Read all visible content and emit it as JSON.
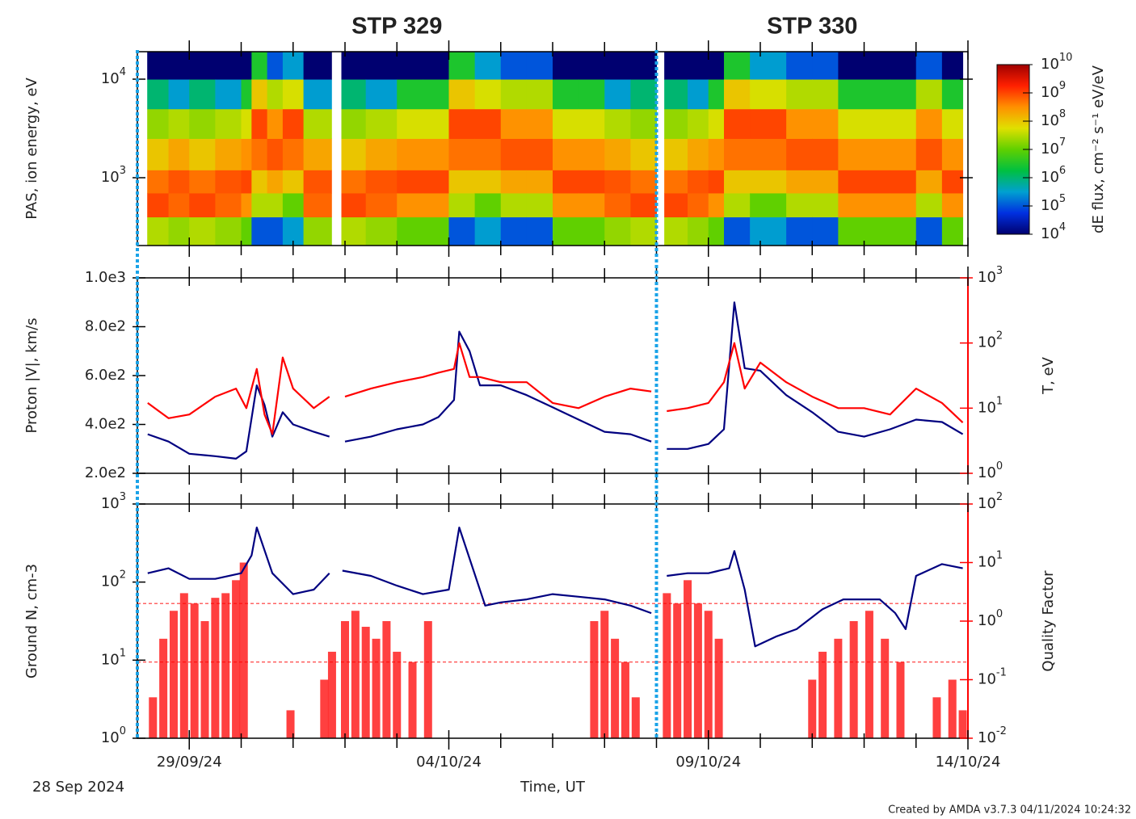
{
  "time_axis": {
    "xlim": [
      0,
      16
    ],
    "xticks": [
      {
        "value": 1,
        "label": "29/09/24"
      },
      {
        "value": 6,
        "label": "04/10/24"
      },
      {
        "value": 11,
        "label": "09/10/24"
      },
      {
        "value": 16,
        "label": "14/10/24"
      }
    ],
    "xminor": [
      2,
      3,
      4,
      5,
      7,
      8,
      9,
      10,
      12,
      13,
      14,
      15
    ],
    "label": "Time, UT",
    "start_label": "28 Sep 2024"
  },
  "intervals": [
    {
      "label": "STP 329",
      "start": 0,
      "end": 10,
      "color": "#1aa3e8"
    },
    {
      "label": "STP 330",
      "start": 10,
      "end": 16,
      "color": "#1aa3e8"
    }
  ],
  "credit": "Created by AMDA v3.7.3 04/11/2024 10:24:32",
  "chart_data": [
    {
      "type": "spectrogram",
      "ylabel": "PAS, ion energy, eV",
      "ylog": true,
      "ylim": [
        205,
        19000
      ],
      "yticks": [
        {
          "value": 1000,
          "label": "10",
          "exponent": "3"
        },
        {
          "value": 10000,
          "label": "10",
          "exponent": "4"
        }
      ],
      "x_edges": [
        0.19,
        0.6,
        1.0,
        1.5,
        2.0,
        2.2,
        2.5,
        2.8,
        3.2,
        3.74,
        3.93,
        4.4,
        5.0,
        5.5,
        6.0,
        6.5,
        7.0,
        7.5,
        8.0,
        8.5,
        9.0,
        9.5,
        10.0,
        10.15,
        10.6,
        11.0,
        11.3,
        11.8,
        12.5,
        13.0,
        13.5,
        14.0,
        14.5,
        15.0,
        15.5,
        15.9
      ],
      "y_edges": [
        205,
        400,
        700,
        1200,
        2500,
        5000,
        10000,
        19000
      ],
      "values": [
        [
          30000000.0,
          1000000000.0,
          500000000.0,
          100000000.0,
          20000000.0,
          1000000.0,
          10000.0
        ],
        [
          20000000.0,
          600000000.0,
          800000000.0,
          200000000.0,
          30000000.0,
          300000.0,
          10000.0
        ],
        [
          30000000.0,
          1000000000.0,
          500000000.0,
          100000000.0,
          20000000.0,
          1000000.0,
          10000.0
        ],
        [
          20000000.0,
          600000000.0,
          800000000.0,
          200000000.0,
          30000000.0,
          300000.0,
          10000.0
        ],
        [
          10000000.0,
          300000000.0,
          1000000000.0,
          300000000.0,
          50000000.0,
          3000000.0,
          10000.0
        ],
        [
          100000.0,
          30000000.0,
          100000000.0,
          500000000.0,
          1000000000.0,
          100000000.0,
          3000000.0
        ],
        [
          100000.0,
          30000000.0,
          200000000.0,
          800000000.0,
          300000000.0,
          30000000.0,
          100000.0
        ],
        [
          300000.0,
          10000000.0,
          100000000.0,
          500000000.0,
          1000000000.0,
          50000000.0,
          300000.0
        ],
        [
          20000000.0,
          600000000.0,
          800000000.0,
          200000000.0,
          30000000.0,
          300000.0,
          10000.0
        ],
        [
          null,
          null,
          null,
          null,
          null,
          null,
          null
        ],
        [
          30000000.0,
          1000000000.0,
          500000000.0,
          100000000.0,
          20000000.0,
          1000000.0,
          10000.0
        ],
        [
          20000000.0,
          600000000.0,
          800000000.0,
          200000000.0,
          30000000.0,
          300000.0,
          10000.0
        ],
        [
          10000000.0,
          300000000.0,
          1000000000.0,
          300000000.0,
          50000000.0,
          3000000.0,
          10000.0
        ],
        [
          10000000.0,
          300000000.0,
          1000000000.0,
          300000000.0,
          50000000.0,
          3000000.0,
          10000.0
        ],
        [
          100000.0,
          30000000.0,
          100000000.0,
          500000000.0,
          1000000000.0,
          100000000.0,
          3000000.0
        ],
        [
          300000.0,
          10000000.0,
          100000000.0,
          500000000.0,
          1000000000.0,
          50000000.0,
          300000.0
        ],
        [
          100000.0,
          30000000.0,
          200000000.0,
          800000000.0,
          300000000.0,
          30000000.0,
          100000.0
        ],
        [
          100000.0,
          30000000.0,
          200000000.0,
          800000000.0,
          300000000.0,
          30000000.0,
          100000.0
        ],
        [
          10000000.0,
          300000000.0,
          1000000000.0,
          300000000.0,
          50000000.0,
          3000000.0,
          10000.0
        ],
        [
          10000000.0,
          300000000.0,
          1000000000.0,
          300000000.0,
          50000000.0,
          3000000.0,
          10000.0
        ],
        [
          20000000.0,
          600000000.0,
          800000000.0,
          200000000.0,
          30000000.0,
          300000.0,
          10000.0
        ],
        [
          30000000.0,
          1000000000.0,
          500000000.0,
          100000000.0,
          20000000.0,
          1000000.0,
          10000.0
        ],
        [
          null,
          null,
          null,
          null,
          null,
          null,
          null
        ],
        [
          30000000.0,
          1000000000.0,
          500000000.0,
          100000000.0,
          20000000.0,
          1000000.0,
          10000.0
        ],
        [
          20000000.0,
          600000000.0,
          800000000.0,
          200000000.0,
          30000000.0,
          300000.0,
          10000.0
        ],
        [
          10000000.0,
          300000000.0,
          1000000000.0,
          300000000.0,
          50000000.0,
          3000000.0,
          10000.0
        ],
        [
          100000.0,
          30000000.0,
          100000000.0,
          500000000.0,
          1000000000.0,
          100000000.0,
          3000000.0
        ],
        [
          300000.0,
          10000000.0,
          100000000.0,
          500000000.0,
          1000000000.0,
          50000000.0,
          300000.0
        ],
        [
          100000.0,
          30000000.0,
          200000000.0,
          800000000.0,
          300000000.0,
          30000000.0,
          100000.0
        ],
        [
          100000.0,
          30000000.0,
          200000000.0,
          800000000.0,
          300000000.0,
          30000000.0,
          100000.0
        ],
        [
          10000000.0,
          300000000.0,
          1000000000.0,
          300000000.0,
          50000000.0,
          3000000.0,
          10000.0
        ],
        [
          10000000.0,
          300000000.0,
          1000000000.0,
          300000000.0,
          50000000.0,
          3000000.0,
          10000.0
        ],
        [
          10000000.0,
          300000000.0,
          1000000000.0,
          300000000.0,
          50000000.0,
          3000000.0,
          10000.0
        ],
        [
          100000.0,
          30000000.0,
          200000000.0,
          800000000.0,
          300000000.0,
          30000000.0,
          100000.0
        ],
        [
          10000000.0,
          300000000.0,
          1000000000.0,
          300000000.0,
          50000000.0,
          3000000.0,
          10000.0
        ]
      ],
      "colorbar": {
        "label": "dE flux, cm⁻² s⁻¹ eV/eV",
        "log": true,
        "zlim": [
          10000.0,
          10000000000.0
        ],
        "ticks": [
          {
            "value": 10000.0,
            "label": "10",
            "exponent": "4"
          },
          {
            "value": 100000.0,
            "label": "10",
            "exponent": "5"
          },
          {
            "value": 1000000.0,
            "label": "10",
            "exponent": "6"
          },
          {
            "value": 10000000.0,
            "label": "10",
            "exponent": "7"
          },
          {
            "value": 100000000.0,
            "label": "10",
            "exponent": "8"
          },
          {
            "value": 1000000000.0,
            "label": "10",
            "exponent": "9"
          },
          {
            "value": 10000000000.0,
            "label": "10",
            "exponent": "10"
          }
        ],
        "colors": [
          "#000070",
          "#0030e0",
          "#00a0d0",
          "#00c040",
          "#60d000",
          "#e0e000",
          "#ff9000",
          "#ff2000",
          "#a00000"
        ]
      }
    },
    {
      "type": "scatter",
      "ylabel": "Proton |V|, km/s",
      "y2label": "T, eV",
      "ycolor": "#30308f",
      "y2color": "#ff0000",
      "ylim": [
        200,
        1000
      ],
      "yticks": [
        {
          "value": 200,
          "label": "2.0e2"
        },
        {
          "value": 400,
          "label": "4.0e2"
        },
        {
          "value": 600,
          "label": "6.0e2"
        },
        {
          "value": 800,
          "label": "8.0e2"
        },
        {
          "value": 1000,
          "label": "1.0e3"
        }
      ],
      "y2log": true,
      "y2lim": [
        1,
        1000
      ],
      "y2ticks": [
        {
          "value": 1,
          "label": "10",
          "exponent": "0"
        },
        {
          "value": 10,
          "label": "10",
          "exponent": "1"
        },
        {
          "value": 100,
          "label": "10",
          "exponent": "2"
        },
        {
          "value": 1000,
          "label": "10",
          "exponent": "3"
        }
      ],
      "series": [
        {
          "color": "#000080",
          "style": "line",
          "x": [
            0.2,
            0.6,
            1.0,
            1.5,
            1.9,
            2.1,
            2.3,
            2.45,
            2.6,
            2.8,
            3.0,
            3.4,
            3.7,
            3.85,
            4.0,
            4.5,
            5.0,
            5.5,
            5.8,
            6.1,
            6.2,
            6.4,
            6.6,
            7.0,
            7.5,
            8.0,
            8.5,
            9.0,
            9.5,
            9.9,
            10.07,
            10.2,
            10.6,
            11.0,
            11.3,
            11.5,
            11.7,
            12.0,
            12.5,
            13.0,
            13.5,
            14.0,
            14.5,
            15.0,
            15.5,
            15.9
          ],
          "values": [
            360,
            330,
            280,
            270,
            260,
            290,
            560,
            480,
            350,
            450,
            400,
            370,
            350,
            null,
            330,
            350,
            380,
            400,
            430,
            500,
            780,
            700,
            560,
            560,
            520,
            470,
            420,
            370,
            360,
            330,
            null,
            300,
            300,
            320,
            380,
            900,
            630,
            620,
            520,
            450,
            370,
            350,
            380,
            420,
            410,
            360
          ]
        },
        {
          "color": "#ff0000",
          "style": "line",
          "axis": "y2",
          "x": [
            0.2,
            0.6,
            1.0,
            1.5,
            1.9,
            2.1,
            2.3,
            2.45,
            2.6,
            2.8,
            3.0,
            3.4,
            3.7,
            3.85,
            4.0,
            4.5,
            5.0,
            5.5,
            5.8,
            6.1,
            6.2,
            6.4,
            6.6,
            7.0,
            7.5,
            8.0,
            8.5,
            9.0,
            9.5,
            9.9,
            10.07,
            10.2,
            10.6,
            11.0,
            11.3,
            11.5,
            11.7,
            12.0,
            12.5,
            13.0,
            13.5,
            14.0,
            14.5,
            15.0,
            15.5,
            15.9
          ],
          "values": [
            12,
            7,
            8,
            15,
            20,
            10,
            40,
            8,
            4,
            60,
            20,
            10,
            15,
            null,
            15,
            20,
            25,
            30,
            35,
            40,
            100,
            30,
            30,
            25,
            25,
            12,
            10,
            15,
            20,
            18,
            null,
            9,
            10,
            12,
            25,
            100,
            20,
            50,
            25,
            15,
            10,
            10,
            8,
            20,
            12,
            6
          ]
        }
      ]
    },
    {
      "type": "scatter",
      "ylabel": "Ground N, cm-3",
      "y2label": "Quality Factor",
      "ycolor": "#30308f",
      "y2color": "#ff0000",
      "ylog": true,
      "ylim": [
        1,
        1000
      ],
      "yticks": [
        {
          "value": 1,
          "label": "10",
          "exponent": "0"
        },
        {
          "value": 10,
          "label": "10",
          "exponent": "1"
        },
        {
          "value": 100,
          "label": "10",
          "exponent": "2"
        },
        {
          "value": 1000,
          "label": "10",
          "exponent": "3"
        }
      ],
      "y2log": true,
      "y2lim": [
        0.01,
        100
      ],
      "y2ticks": [
        {
          "value": 0.01,
          "label": "10",
          "exponent": "-2"
        },
        {
          "value": 0.1,
          "label": "10",
          "exponent": "-1"
        },
        {
          "value": 1,
          "label": "10",
          "exponent": "0"
        },
        {
          "value": 10,
          "label": "10",
          "exponent": "1"
        },
        {
          "value": 100,
          "label": "10",
          "exponent": "2"
        }
      ],
      "y2_reference_lines": [
        2,
        0.2
      ],
      "series": [
        {
          "color": "#ff0000",
          "style": "bars",
          "axis": "y2",
          "x": [
            0.3,
            0.5,
            0.7,
            0.9,
            1.1,
            1.3,
            1.5,
            1.7,
            1.9,
            2.05,
            2.95,
            3.6,
            3.75,
            4.0,
            4.2,
            4.4,
            4.6,
            4.8,
            5.0,
            5.3,
            5.6,
            8.8,
            9.0,
            9.2,
            9.4,
            9.6,
            10.2,
            10.4,
            10.6,
            10.8,
            11.0,
            11.2,
            13.0,
            13.2,
            13.5,
            13.8,
            14.1,
            14.4,
            14.7,
            15.4,
            15.7,
            15.9
          ],
          "values": [
            0.05,
            0.5,
            1.5,
            3,
            2,
            1,
            2.5,
            3,
            5,
            10,
            0.03,
            0.1,
            0.3,
            1.0,
            1.5,
            0.8,
            0.5,
            1.0,
            0.3,
            0.2,
            1.0,
            1.0,
            1.5,
            0.5,
            0.2,
            0.05,
            3,
            2,
            5,
            2,
            1.5,
            0.5,
            0.1,
            0.3,
            0.5,
            1.0,
            1.5,
            0.5,
            0.2,
            0.05,
            0.1,
            0.03
          ]
        },
        {
          "color": "#000080",
          "style": "line",
          "x": [
            0.2,
            0.6,
            1.0,
            1.5,
            2.0,
            2.2,
            2.3,
            2.6,
            3.0,
            3.4,
            3.7,
            3.85,
            3.95,
            4.5,
            5.0,
            5.5,
            6.0,
            6.2,
            6.4,
            6.7,
            7.0,
            7.5,
            8.0,
            8.5,
            9.0,
            9.5,
            9.9,
            10.07,
            10.2,
            10.6,
            11.0,
            11.4,
            11.5,
            11.7,
            11.9,
            12.3,
            12.7,
            13.2,
            13.6,
            14.0,
            14.3,
            14.6,
            14.8,
            15.0,
            15.5,
            15.9
          ],
          "values": [
            130,
            150,
            110,
            110,
            130,
            220,
            500,
            130,
            70,
            80,
            130,
            null,
            140,
            120,
            90,
            70,
            80,
            500,
            200,
            50,
            55,
            60,
            70,
            65,
            60,
            50,
            40,
            null,
            120,
            130,
            130,
            150,
            250,
            80,
            15,
            20,
            25,
            45,
            60,
            60,
            60,
            40,
            25,
            120,
            170,
            150
          ]
        }
      ]
    }
  ]
}
